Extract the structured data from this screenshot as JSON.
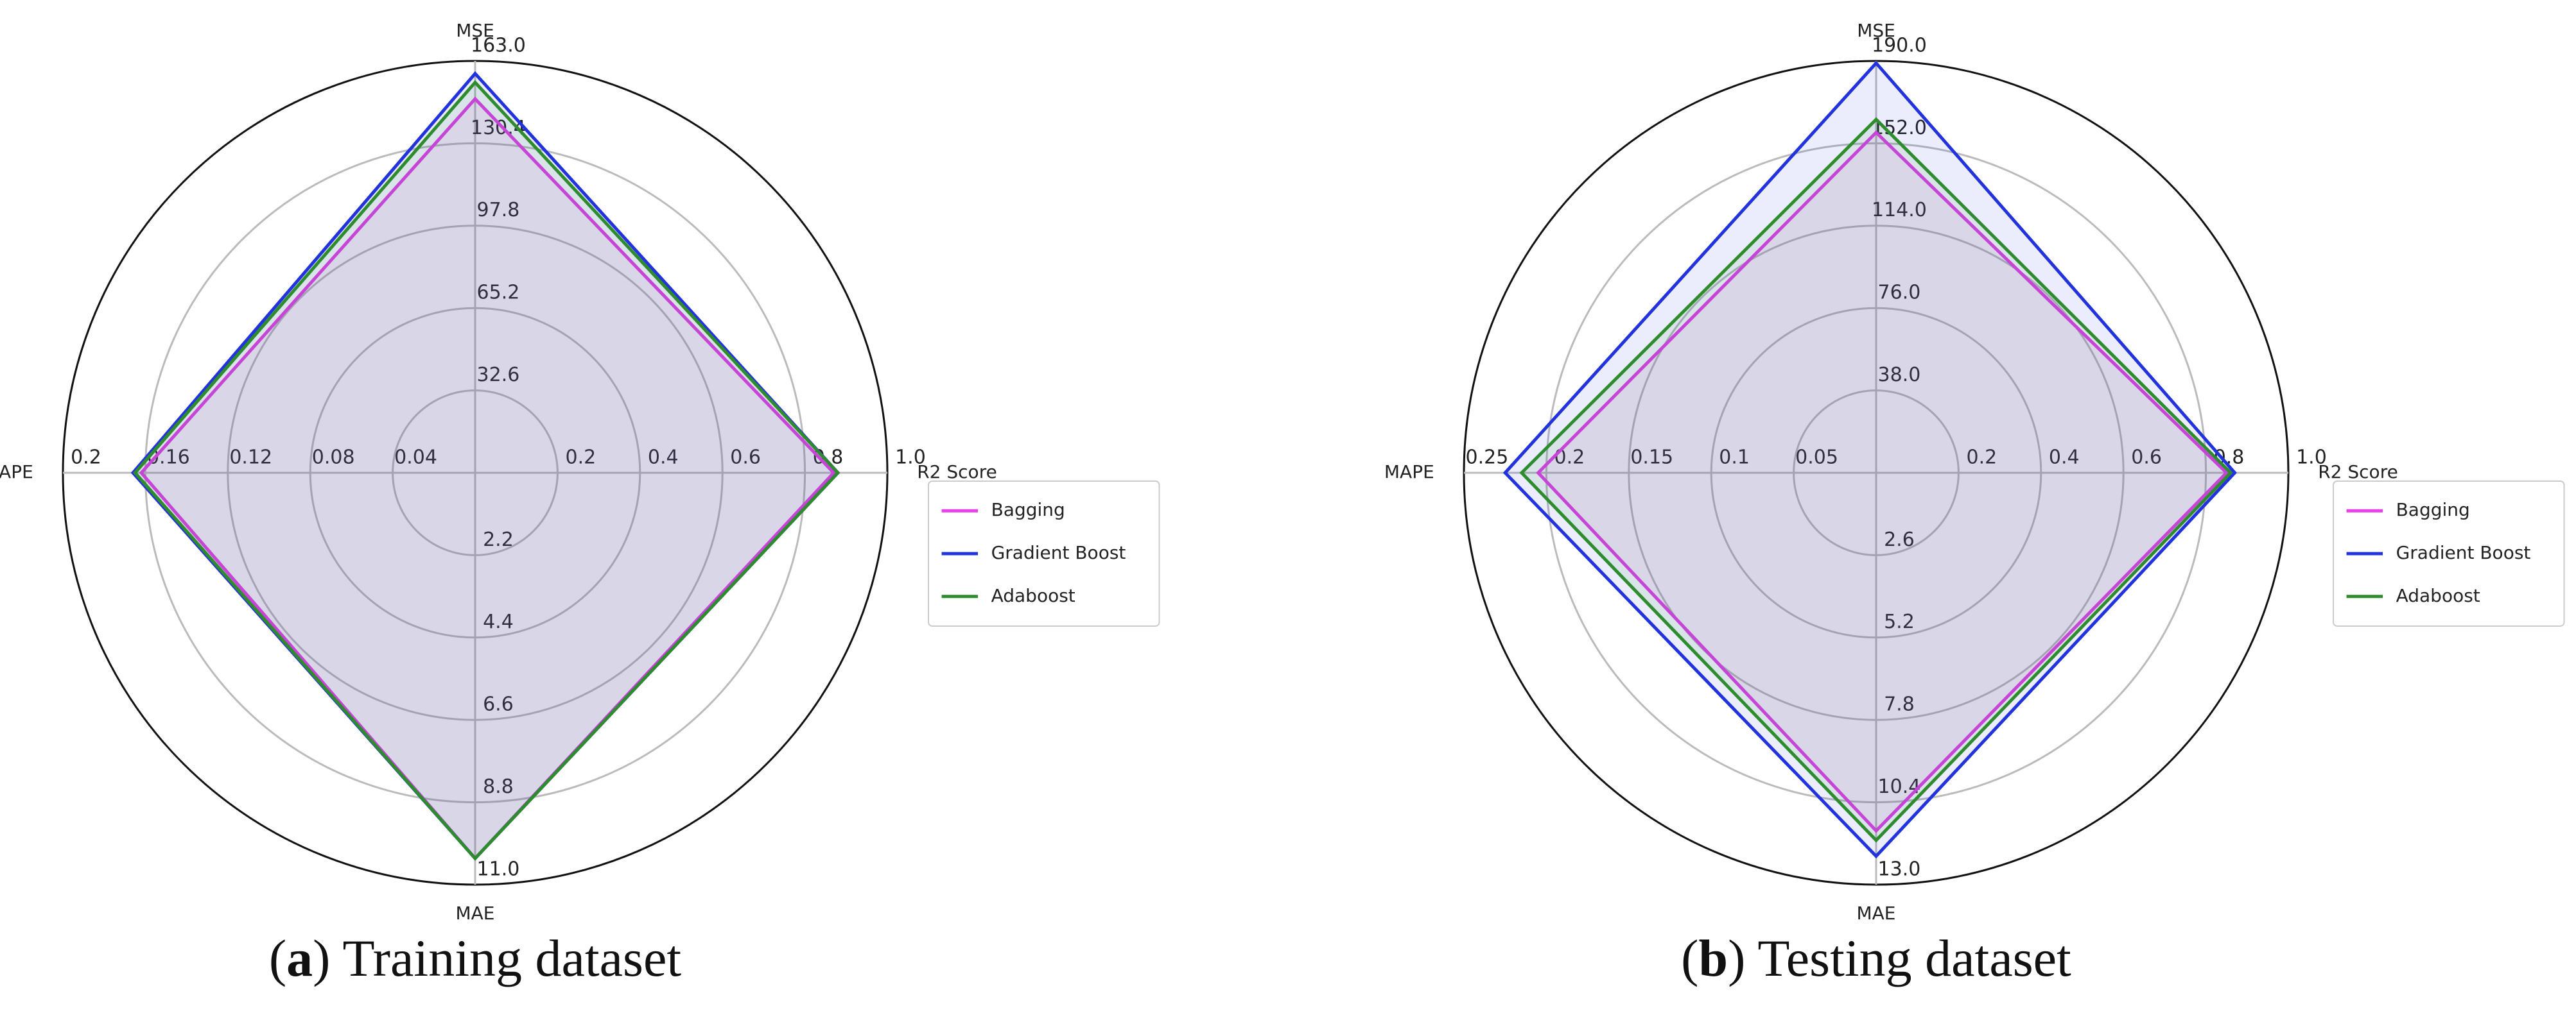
{
  "chart_data": [
    {
      "type": "radar",
      "caption": [
        "(",
        "a",
        ") Training dataset"
      ],
      "axes": [
        {
          "name": "MSE",
          "lim": [
            0,
            163
          ],
          "ticks": [
            32.6,
            65.2,
            97.8,
            130.4,
            {
              "value": 163,
              "label": "163.0"
            }
          ]
        },
        {
          "name": "R2 Score",
          "lim": [
            0,
            1
          ],
          "ticks": [
            0.2,
            0.4,
            0.6,
            0.8,
            {
              "value": 1,
              "label": "1.0"
            }
          ]
        },
        {
          "name": "MAE",
          "lim": [
            0,
            11
          ],
          "ticks": [
            2.2,
            4.4,
            6.6,
            8.8,
            {
              "value": 11,
              "label": "11.0"
            }
          ]
        },
        {
          "name": "MAPE",
          "lim": [
            0,
            0.2
          ],
          "ticks": [
            0.04,
            0.08,
            0.12,
            0.16,
            0.2
          ]
        }
      ],
      "series": [
        {
          "name": "Bagging",
          "color": "#e83fe8",
          "values": [
            148,
            0.87,
            10.3,
            0.162
          ]
        },
        {
          "name": "Gradient Boost",
          "color": "#2233dd",
          "values": [
            158,
            0.88,
            10.3,
            0.166
          ]
        },
        {
          "name": "Adaboost",
          "color": "#2e8b2e",
          "values": [
            154.5,
            0.88,
            10.3,
            0.165
          ]
        }
      ]
    },
    {
      "type": "radar",
      "caption": [
        "(",
        "b",
        ") Testing dataset"
      ],
      "axes": [
        {
          "name": "MSE",
          "lim": [
            0,
            190
          ],
          "ticks": [
            {
              "value": 38,
              "label": "38.0"
            },
            {
              "value": 76,
              "label": "76.0"
            },
            {
              "value": 114,
              "label": "114.0"
            },
            {
              "value": 152,
              "label": "152.0"
            },
            {
              "value": 190,
              "label": "190.0"
            }
          ]
        },
        {
          "name": "R2 Score",
          "lim": [
            0,
            1
          ],
          "ticks": [
            0.2,
            0.4,
            0.6,
            0.8,
            {
              "value": 1,
              "label": "1.0"
            }
          ]
        },
        {
          "name": "MAE",
          "lim": [
            0,
            13
          ],
          "ticks": [
            2.6,
            5.2,
            7.8,
            10.4,
            {
              "value": 13,
              "label": "13.0"
            }
          ]
        },
        {
          "name": "MAPE",
          "lim": [
            0,
            0.25
          ],
          "ticks": [
            0.05,
            0.1,
            0.15,
            0.2,
            0.25
          ]
        }
      ],
      "series": [
        {
          "name": "Bagging",
          "color": "#e83fe8",
          "values": [
            157,
            0.85,
            11.3,
            0.205
          ]
        },
        {
          "name": "Gradient Boost",
          "color": "#2233dd",
          "values": [
            189,
            0.87,
            12.1,
            0.225
          ]
        },
        {
          "name": "Adaboost",
          "color": "#2e8b2e",
          "values": [
            163,
            0.86,
            11.6,
            0.215
          ]
        }
      ]
    }
  ]
}
